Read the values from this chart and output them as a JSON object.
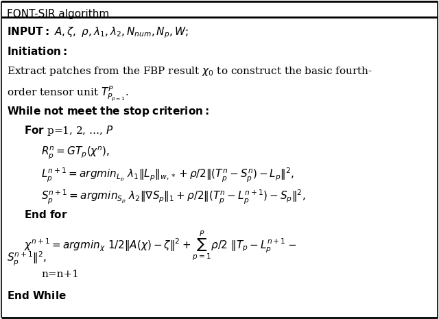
{
  "title": "FONT-SIR algorithm",
  "bg_color": "#ffffff",
  "border_color": "#000000",
  "text_color": "#000000",
  "fig_width": 6.4,
  "fig_height": 4.65,
  "dpi": 100
}
